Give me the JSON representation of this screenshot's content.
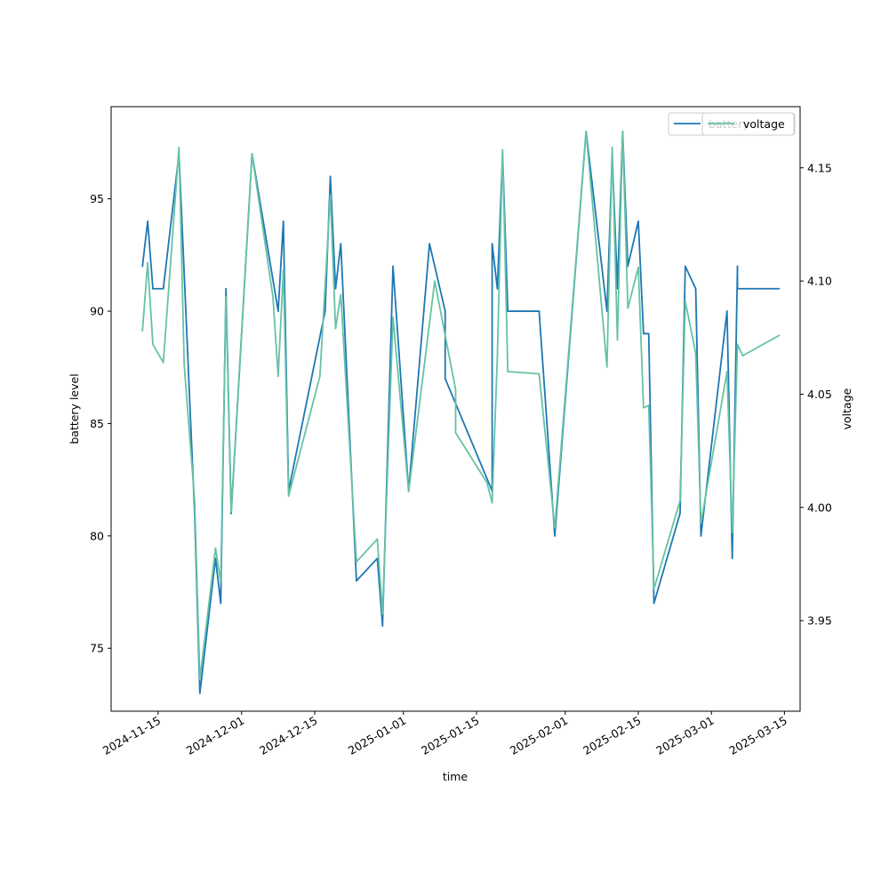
{
  "chart_data": {
    "type": "line",
    "xlabel": "time",
    "ylabel_left": "battery level",
    "ylabel_right": "voltage",
    "x_ticks": [
      "2024-11-15",
      "2024-12-01",
      "2024-12-15",
      "2025-01-01",
      "2025-01-15",
      "2025-02-01",
      "2025-02-15",
      "2025-03-01",
      "2025-03-15"
    ],
    "y_left_ticks": [
      "75",
      "80",
      "85",
      "90",
      "95"
    ],
    "y_right_ticks": [
      "3.95",
      "4.00",
      "4.05",
      "4.10",
      "4.15"
    ],
    "xlim": [
      "2024-11-06",
      "2025-03-18"
    ],
    "ylim_left": [
      72.2,
      99.1
    ],
    "ylim_right": [
      3.91,
      4.177
    ],
    "grid": false,
    "legend_placement": "top-right",
    "colors": {
      "battery": "#1f77b4",
      "voltage": "#66c2a5"
    },
    "series": [
      {
        "name": "battery",
        "axis": "left",
        "points": [
          [
            "2024-11-12",
            92
          ],
          [
            "2024-11-13",
            94
          ],
          [
            "2024-11-14",
            91
          ],
          [
            "2024-11-16",
            91
          ],
          [
            "2024-11-19",
            97
          ],
          [
            "2024-11-22",
            81
          ],
          [
            "2024-11-23",
            73
          ],
          [
            "2024-11-26",
            79
          ],
          [
            "2024-11-27",
            77
          ],
          [
            "2024-11-28",
            91
          ],
          [
            "2024-11-29",
            81
          ],
          [
            "2024-12-03",
            97
          ],
          [
            "2024-12-08",
            90
          ],
          [
            "2024-12-09",
            94
          ],
          [
            "2024-12-10",
            82
          ],
          [
            "2024-12-17",
            90
          ],
          [
            "2024-12-18",
            96
          ],
          [
            "2024-12-19",
            91
          ],
          [
            "2024-12-20",
            93
          ],
          [
            "2024-12-23",
            78
          ],
          [
            "2024-12-27",
            79
          ],
          [
            "2024-12-28",
            76
          ],
          [
            "2024-12-30",
            92
          ],
          [
            "2025-01-02",
            82
          ],
          [
            "2025-01-06",
            93
          ],
          [
            "2025-01-09",
            90
          ],
          [
            "2025-01-09",
            87
          ],
          [
            "2025-01-18",
            82
          ],
          [
            "2025-01-18",
            93
          ],
          [
            "2025-01-19",
            91
          ],
          [
            "2025-01-20",
            97
          ],
          [
            "2025-01-21",
            90
          ],
          [
            "2025-01-27",
            90
          ],
          [
            "2025-01-30",
            80
          ],
          [
            "2025-02-05",
            98
          ],
          [
            "2025-02-09",
            90
          ],
          [
            "2025-02-10",
            97
          ],
          [
            "2025-02-11",
            91
          ],
          [
            "2025-02-12",
            98
          ],
          [
            "2025-02-13",
            92
          ],
          [
            "2025-02-15",
            94
          ],
          [
            "2025-02-16",
            89
          ],
          [
            "2025-02-17",
            89
          ],
          [
            "2025-02-18",
            77
          ],
          [
            "2025-02-23",
            81
          ],
          [
            "2025-02-24",
            92
          ],
          [
            "2025-02-26",
            91
          ],
          [
            "2025-02-27",
            80
          ],
          [
            "2025-03-04",
            90
          ],
          [
            "2025-03-05",
            79
          ],
          [
            "2025-03-06",
            92
          ],
          [
            "2025-03-06",
            91
          ],
          [
            "2025-03-14",
            91
          ]
        ]
      },
      {
        "name": "voltage",
        "axis": "right",
        "points": [
          [
            "2024-11-12",
            4.078
          ],
          [
            "2024-11-13",
            4.108
          ],
          [
            "2024-11-14",
            4.072
          ],
          [
            "2024-11-16",
            4.064
          ],
          [
            "2024-11-19",
            4.159
          ],
          [
            "2024-11-20",
            4.063
          ],
          [
            "2024-11-22",
            4.003
          ],
          [
            "2024-11-23",
            3.924
          ],
          [
            "2024-11-26",
            3.982
          ],
          [
            "2024-11-27",
            3.967
          ],
          [
            "2024-11-28",
            4.093
          ],
          [
            "2024-11-29",
            3.998
          ],
          [
            "2024-12-03",
            4.156
          ],
          [
            "2024-12-07",
            4.093
          ],
          [
            "2024-12-08",
            4.058
          ],
          [
            "2024-12-09",
            4.105
          ],
          [
            "2024-12-10",
            4.005
          ],
          [
            "2024-12-16",
            4.058
          ],
          [
            "2024-12-18",
            4.138
          ],
          [
            "2024-12-19",
            4.079
          ],
          [
            "2024-12-20",
            4.094
          ],
          [
            "2024-12-23",
            3.976
          ],
          [
            "2024-12-27",
            3.986
          ],
          [
            "2024-12-28",
            3.953
          ],
          [
            "2024-12-30",
            4.084
          ],
          [
            "2025-01-02",
            4.007
          ],
          [
            "2025-01-07",
            4.1
          ],
          [
            "2025-01-11",
            4.052
          ],
          [
            "2025-01-11",
            4.033
          ],
          [
            "2025-01-17",
            4.011
          ],
          [
            "2025-01-18",
            4.002
          ],
          [
            "2025-01-19",
            4.067
          ],
          [
            "2025-01-20",
            4.158
          ],
          [
            "2025-01-21",
            4.06
          ],
          [
            "2025-01-27",
            4.059
          ],
          [
            "2025-01-30",
            3.991
          ],
          [
            "2025-02-05",
            4.166
          ],
          [
            "2025-02-09",
            4.062
          ],
          [
            "2025-02-10",
            4.159
          ],
          [
            "2025-02-11",
            4.074
          ],
          [
            "2025-02-12",
            4.166
          ],
          [
            "2025-02-13",
            4.088
          ],
          [
            "2025-02-15",
            4.106
          ],
          [
            "2025-02-16",
            4.044
          ],
          [
            "2025-02-17",
            4.045
          ],
          [
            "2025-02-18",
            3.964
          ],
          [
            "2025-02-23",
            4.003
          ],
          [
            "2025-02-24",
            4.091
          ],
          [
            "2025-02-26",
            4.068
          ],
          [
            "2025-02-27",
            3.993
          ],
          [
            "2025-03-04",
            4.06
          ],
          [
            "2025-03-05",
            3.989
          ],
          [
            "2025-03-06",
            4.072
          ],
          [
            "2025-03-07",
            4.067
          ],
          [
            "2025-03-14",
            4.076
          ]
        ]
      }
    ]
  }
}
